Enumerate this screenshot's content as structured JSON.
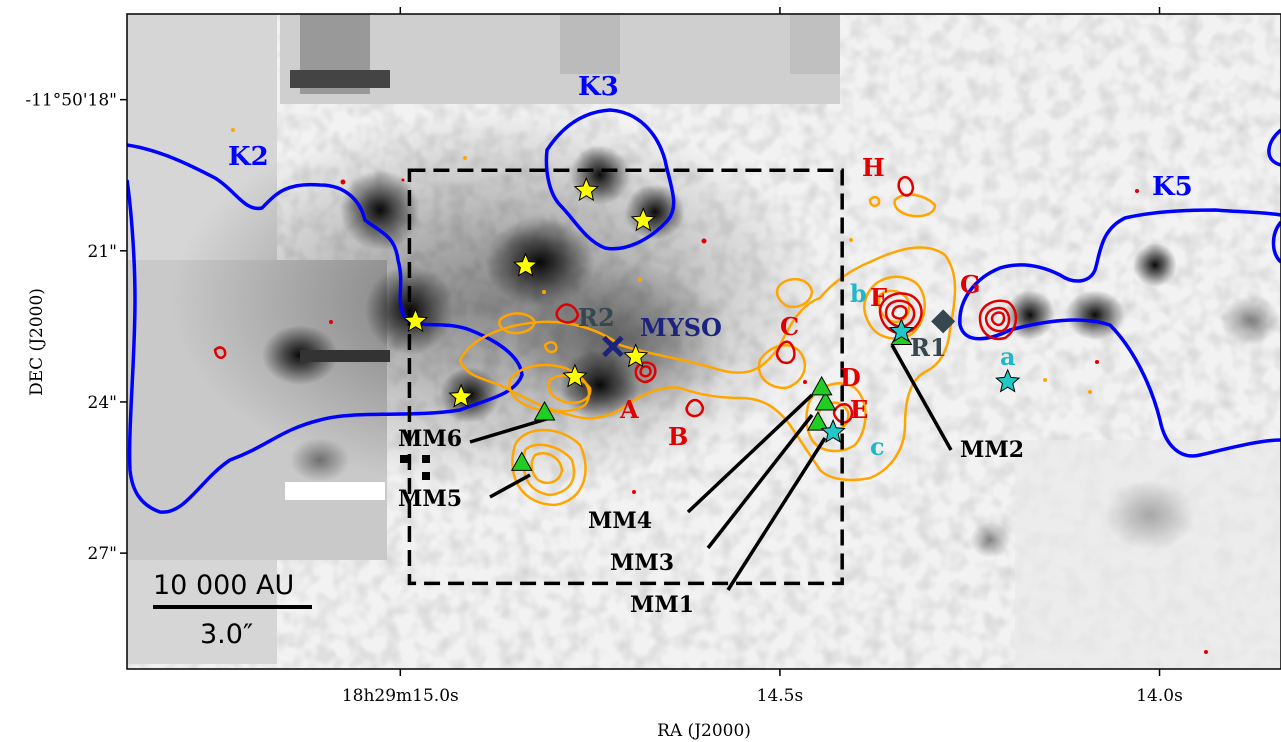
{
  "chart_data": {
    "type": "scatter",
    "xlabel": "RA (J2000)",
    "ylabel": "DEC (J2000)",
    "x_ticks": [
      {
        "ra_s": 15.0,
        "label": "18h29m15.0s"
      },
      {
        "ra_s": 14.5,
        "label": "14.5s"
      },
      {
        "ra_s": 14.0,
        "label": "14.0s"
      }
    ],
    "y_ticks": [
      {
        "dec_arcsec": 18,
        "label": "-11°50'18\""
      },
      {
        "dec_arcsec": 21,
        "label": "21\""
      },
      {
        "dec_arcsec": 24,
        "label": "24\""
      },
      {
        "dec_arcsec": 27,
        "label": "27\""
      }
    ],
    "xlim_ra_s": [
      15.36,
      13.84
    ],
    "ylim_dec_arcsec": [
      16.3,
      29.3
    ],
    "dashed_box": {
      "ra_s": [
        14.988,
        14.418
      ],
      "dec_arcsec": [
        19.4,
        27.6
      ]
    },
    "scale_bar": {
      "length_label": "10 000 AU",
      "angle_label": "3.0″"
    },
    "near_ir_clusters": [
      {
        "label": "K2",
        "color": "#0000ff"
      },
      {
        "label": "K3",
        "color": "#0000ff"
      },
      {
        "label": "K5",
        "color": "#0000ff"
      }
    ],
    "mm_cores": [
      {
        "label": "MM1",
        "ra_s": 14.45,
        "dec_arcsec": 24.4
      },
      {
        "label": "MM2",
        "ra_s": 14.34,
        "dec_arcsec": 22.7
      },
      {
        "label": "MM3",
        "ra_s": 14.44,
        "dec_arcsec": 24.0
      },
      {
        "label": "MM4",
        "ra_s": 14.445,
        "dec_arcsec": 23.7
      },
      {
        "label": "MM5",
        "ra_s": 14.84,
        "dec_arcsec": 25.2
      },
      {
        "label": "MM6",
        "ra_s": 14.81,
        "dec_arcsec": 24.2
      }
    ],
    "near_ir_stars": [
      {
        "ra_s": 14.755,
        "dec_arcsec": 19.8
      },
      {
        "ra_s": 14.68,
        "dec_arcsec": 20.4
      },
      {
        "ra_s": 14.835,
        "dec_arcsec": 21.3
      },
      {
        "ra_s": 14.98,
        "dec_arcsec": 22.4
      },
      {
        "ra_s": 14.92,
        "dec_arcsec": 23.9
      },
      {
        "ra_s": 14.77,
        "dec_arcsec": 23.5
      },
      {
        "ra_s": 14.69,
        "dec_arcsec": 23.1
      }
    ],
    "cyan_stars": [
      {
        "label": "a",
        "ra_s": 14.2,
        "dec_arcsec": 23.6
      },
      {
        "label": "b",
        "ra_s": 14.34,
        "dec_arcsec": 22.6
      },
      {
        "label": "c",
        "ra_s": 14.43,
        "dec_arcsec": 24.6
      }
    ],
    "myso": {
      "label": "MYSO",
      "ra_s": 14.72,
      "dec_arcsec": 22.9
    },
    "radio_sources": [
      {
        "label": "R1",
        "ra_s": 14.285,
        "dec_arcsec": 22.4
      },
      {
        "label": "R2",
        "ra_s": 14.72,
        "dec_arcsec": 22.9
      }
    ],
    "red_clumps": [
      "A",
      "B",
      "C",
      "D",
      "E",
      "F",
      "G",
      "H"
    ],
    "colors": {
      "orange_contour": "#ffa500",
      "red_contour": "#e00000",
      "k_contour": "#0000ff",
      "mm_triangle": "#22cc22",
      "star_yellow": "#ffff00",
      "star_cyan": "#20c8c8",
      "myso_marker": "#1a237e",
      "radio_marker": "#37474f",
      "cyan_label": "#20b8c8",
      "radio_label": "#37474f",
      "myso_label": "#1a237e"
    }
  }
}
